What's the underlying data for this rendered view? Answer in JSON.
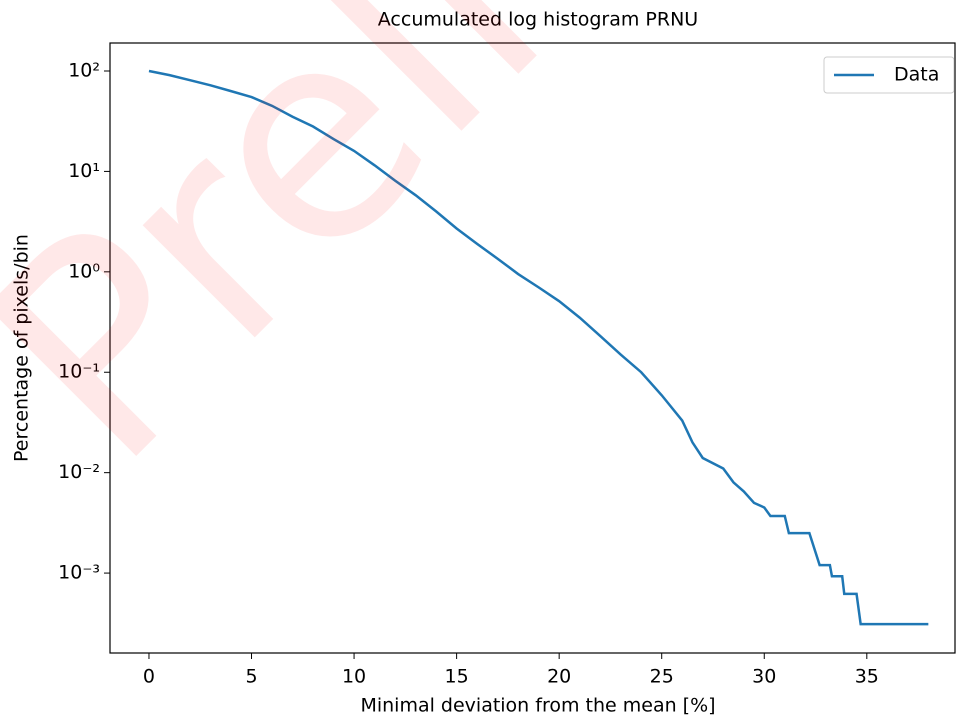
{
  "chart_data": {
    "type": "line",
    "title": "Accumulated log histogram PRNU",
    "xlabel": "Minimal deviation from the mean [%]",
    "ylabel": "Percentage of pixels/bin",
    "watermark": "Preli",
    "log_y": true,
    "legend": "upper right",
    "xlim": [
      -1.9,
      39.3
    ],
    "xticks": [
      0,
      5,
      10,
      15,
      20,
      25,
      30,
      35
    ],
    "ylim": [
      0.00016,
      190
    ],
    "yticks": [
      {
        "value": 0.001,
        "label": "10⁻³"
      },
      {
        "value": 0.01,
        "label": "10⁻²"
      },
      {
        "value": 0.1,
        "label": "10⁻¹"
      },
      {
        "value": 1,
        "label": "10⁰"
      },
      {
        "value": 10,
        "label": "10¹"
      },
      {
        "value": 100,
        "label": "10²"
      }
    ],
    "x": [
      0,
      1,
      2,
      3,
      4,
      5,
      6,
      7,
      8,
      9,
      10,
      11,
      12,
      13,
      14,
      15,
      16,
      17,
      18,
      19,
      20,
      21,
      22,
      23,
      24,
      25,
      26,
      26.5,
      27,
      28,
      28.5,
      29,
      29.5,
      30,
      30.3,
      31,
      31.2,
      32.2,
      32.7,
      33.2,
      33.3,
      33.8,
      33.9,
      34.5,
      34.7,
      38
    ],
    "series": [
      {
        "name": "Data",
        "color": "#1f77b4",
        "values": [
          100,
          91,
          81,
          72,
          63,
          55,
          45,
          35,
          28,
          21,
          16,
          11.5,
          8.1,
          5.8,
          4.0,
          2.7,
          1.9,
          1.35,
          0.95,
          0.7,
          0.51,
          0.35,
          0.23,
          0.15,
          0.1,
          0.059,
          0.033,
          0.02,
          0.014,
          0.011,
          0.008,
          0.0065,
          0.005,
          0.0045,
          0.0037,
          0.0037,
          0.0025,
          0.0025,
          0.0012,
          0.0012,
          0.00093,
          0.00093,
          0.00062,
          0.00062,
          0.00031,
          0.00031
        ]
      }
    ]
  }
}
